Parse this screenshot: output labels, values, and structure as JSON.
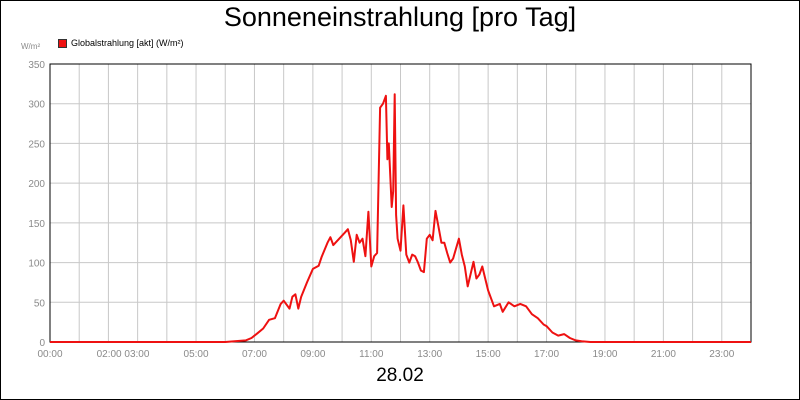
{
  "chart_data": {
    "type": "line",
    "title": "Sonneneinstrahlung [pro Tag]",
    "y_unit": "W/m²",
    "date": "28.02",
    "legend": [
      {
        "name": "Globalstrahlung [akt] (W/m²)",
        "color": "#ee1111"
      }
    ],
    "x_tick_labels": [
      "00:00",
      "02:00 03:00",
      "05:00",
      "07:00",
      "09:00",
      "11:00",
      "13:00",
      "15:00",
      "17:00",
      "19:00",
      "21:00",
      "23:00"
    ],
    "x_tick_hours": [
      0,
      2.5,
      5,
      7,
      9,
      11,
      13,
      15,
      17,
      19,
      21,
      23
    ],
    "x_grid_hours": [
      1,
      2,
      3,
      4,
      5,
      6,
      7,
      8,
      9,
      10,
      11,
      12,
      13,
      14,
      15,
      16,
      17,
      18,
      19,
      20,
      21,
      22,
      23
    ],
    "xlim": [
      0,
      24
    ],
    "ylim": [
      0,
      350
    ],
    "y_ticks": [
      0,
      50,
      100,
      150,
      200,
      250,
      300,
      350
    ],
    "grid": true,
    "legend_position": "top-left",
    "series": [
      {
        "name": "Globalstrahlung [akt] (W/m²)",
        "color": "#ee1111",
        "x": [
          0,
          6.0,
          6.7,
          6.9,
          7.1,
          7.3,
          7.5,
          7.7,
          7.9,
          8.0,
          8.2,
          8.3,
          8.4,
          8.5,
          8.6,
          8.8,
          9.0,
          9.2,
          9.3,
          9.5,
          9.6,
          9.7,
          9.9,
          10.1,
          10.2,
          10.3,
          10.4,
          10.5,
          10.6,
          10.7,
          10.8,
          10.9,
          11.0,
          11.1,
          11.2,
          11.3,
          11.4,
          11.5,
          11.55,
          11.6,
          11.7,
          11.75,
          11.8,
          11.85,
          11.9,
          12.0,
          12.1,
          12.2,
          12.3,
          12.4,
          12.5,
          12.6,
          12.7,
          12.8,
          12.9,
          13.0,
          13.1,
          13.2,
          13.3,
          13.4,
          13.5,
          13.6,
          13.7,
          13.8,
          14.0,
          14.1,
          14.2,
          14.3,
          14.5,
          14.6,
          14.7,
          14.8,
          14.9,
          15.0,
          15.2,
          15.4,
          15.5,
          15.7,
          15.9,
          16.1,
          16.3,
          16.5,
          16.7,
          16.9,
          17.0,
          17.2,
          17.4,
          17.6,
          17.8,
          18.0,
          18.2,
          18.5,
          24
        ],
        "values": [
          0,
          0,
          2,
          5,
          11,
          17,
          28,
          30,
          48,
          52,
          42,
          57,
          60,
          42,
          57,
          75,
          92,
          96,
          107,
          125,
          132,
          122,
          130,
          138,
          142,
          128,
          101,
          135,
          125,
          130,
          108,
          164,
          95,
          108,
          112,
          295,
          300,
          310,
          230,
          250,
          170,
          190,
          312,
          160,
          130,
          115,
          172,
          110,
          100,
          110,
          108,
          100,
          90,
          88,
          130,
          135,
          128,
          165,
          145,
          125,
          125,
          112,
          100,
          105,
          130,
          110,
          95,
          70,
          101,
          80,
          85,
          95,
          80,
          65,
          45,
          48,
          38,
          50,
          45,
          48,
          45,
          35,
          30,
          22,
          20,
          12,
          8,
          10,
          5,
          2,
          1,
          0,
          0
        ]
      }
    ]
  }
}
